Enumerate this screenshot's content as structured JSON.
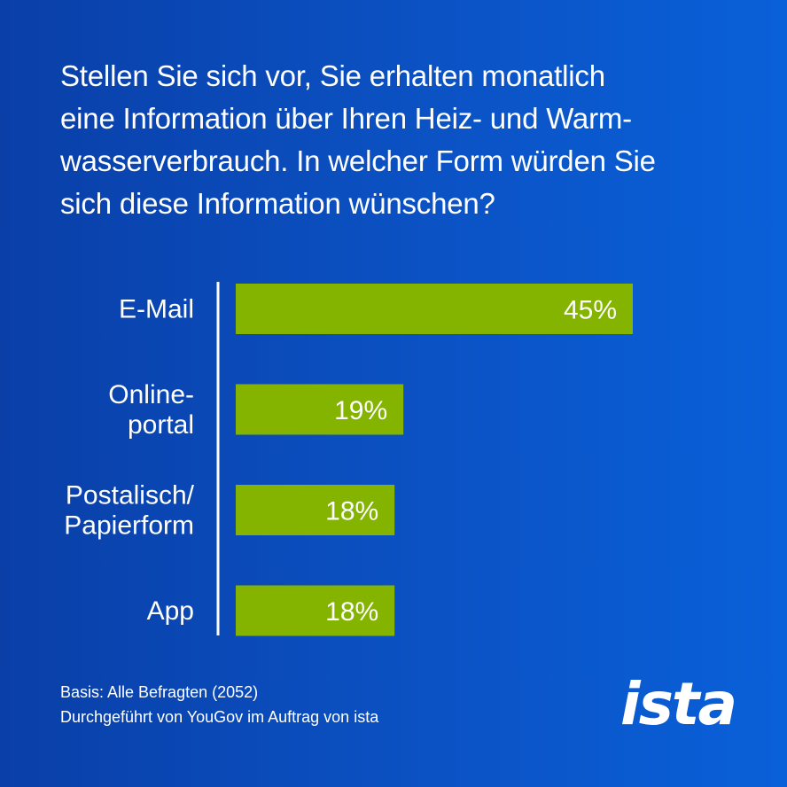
{
  "chart_data": {
    "type": "bar",
    "orientation": "horizontal",
    "title": "Stellen Sie sich vor, Sie erhalten monatlich eine Information über Ihren Heiz- und Warm-wasserverbrauch. In welcher Form würden Sie sich diese Information wünschen?",
    "title_lines": [
      "Stellen Sie sich vor, Sie erhalten monatlich",
      "eine Information über Ihren Heiz- und Warm-",
      "wasserverbrauch. In welcher Form würden Sie",
      "sich diese Information wünschen?"
    ],
    "categories": [
      "E-Mail",
      "Online-portal",
      "Postalisch/Papierform",
      "App"
    ],
    "category_label_lines": [
      [
        "E-Mail"
      ],
      [
        "Online-",
        "portal"
      ],
      [
        "Postalisch/",
        "Papierform"
      ],
      [
        "App"
      ]
    ],
    "values": [
      45,
      19,
      18,
      18
    ],
    "value_labels": [
      "45%",
      "19%",
      "18%",
      "18%"
    ],
    "unit": "%",
    "xlim": [
      0,
      45
    ],
    "grid": false,
    "legend": "none",
    "bar_color": "#84b400",
    "axis_color": "#ffffff"
  },
  "footer": {
    "basis": "Basis: Alle Befragten (2052)",
    "source": "Durchgeführt von YouGov im Auftrag von ista"
  },
  "logo": {
    "text": "ista"
  },
  "colors": {
    "background_start": "#0a3fa8",
    "background_end": "#0a60d9",
    "text": "#ffffff",
    "bar": "#84b400"
  }
}
